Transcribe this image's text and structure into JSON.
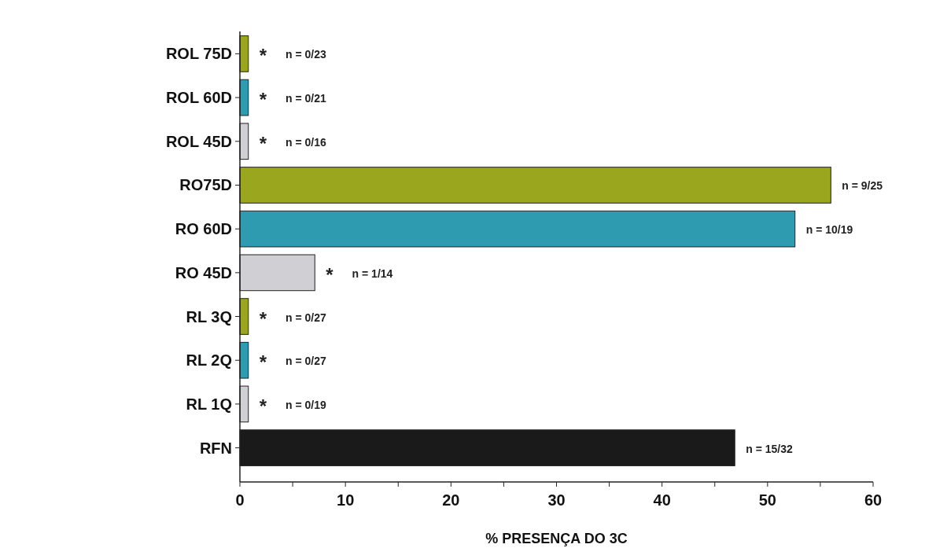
{
  "chart_data": {
    "type": "bar",
    "orientation": "horizontal",
    "xlabel": "% PRESENÇA DO 3C",
    "categories": [
      "ROL 75D",
      "ROL 60D",
      "ROL 45D",
      "RO75D",
      "RO 60D",
      "RO 45D",
      "RL 3Q",
      "RL 2Q",
      "RL 1Q",
      "RFN"
    ],
    "values": [
      0.8,
      0.8,
      0.8,
      56,
      52.6,
      7.1,
      0.8,
      0.8,
      0.8,
      46.9
    ],
    "colors": [
      "#9aa61e",
      "#2e9bb0",
      "#d0d0d4",
      "#9aa61e",
      "#2e9bb0",
      "#d0d0d4",
      "#9aa61e",
      "#2e9bb0",
      "#d0d0d4",
      "#1a1a1a"
    ],
    "value_labels": [
      "* n = 0/23",
      "* n = 0/21",
      "* n = 0/16",
      "n = 9/25",
      "n = 10/19",
      "* n = 1/14",
      "* n = 0/27",
      "* n = 0/27",
      "* n = 0/19",
      "n = 15/32"
    ],
    "xlim": [
      0,
      60
    ],
    "xticks": [
      0,
      {
        "value": 5,
        "label": null
      },
      10,
      {
        "value": 15,
        "label": null
      },
      20,
      {
        "value": 25,
        "label": null
      },
      30,
      {
        "value": 35,
        "label": null
      },
      40,
      {
        "value": 45,
        "label": null
      },
      50,
      {
        "value": 55,
        "label": null
      },
      60
    ]
  }
}
